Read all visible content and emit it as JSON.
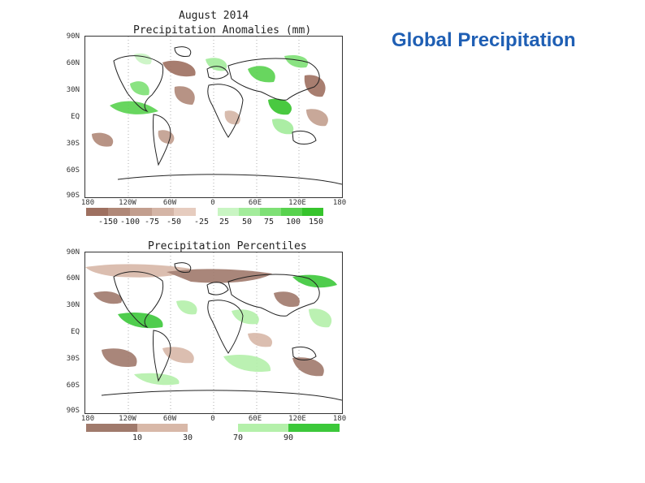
{
  "slide": {
    "title": "Global Precipitation"
  },
  "map1": {
    "title_line1": "August 2014",
    "title_line2": "Precipitation Anomalies (mm)",
    "lat_labels": [
      "90N",
      "60N",
      "30N",
      "EQ",
      "30S",
      "60S",
      "90S"
    ],
    "lon_labels": [
      "180",
      "120W",
      "60W",
      "0",
      "60E",
      "120E",
      "180"
    ],
    "legend_colors": [
      "#9e7060",
      "#b08878",
      "#c29e8e",
      "#d4b5a6",
      "#e6ccbf",
      "#ffffff",
      "#c9f5c3",
      "#a3ec9b",
      "#7ee075",
      "#58d24e",
      "#36c42c"
    ],
    "legend_labels": [
      "-150",
      "-100",
      "-75",
      "-50",
      "-25",
      "25",
      "50",
      "75",
      "100",
      "150"
    ]
  },
  "map2": {
    "title": "Precipitation Percentiles",
    "lat_labels": [
      "90N",
      "60N",
      "30N",
      "EQ",
      "30S",
      "60S",
      "90S"
    ],
    "lon_labels": [
      "180",
      "120W",
      "60W",
      "0",
      "60E",
      "120E",
      "180"
    ],
    "legend_colors": [
      "#a07a6c",
      "#d8b8a8",
      "#ffffff",
      "#b4f0aa",
      "#3cc83a"
    ],
    "legend_labels": [
      "10",
      "30",
      "70",
      "90"
    ]
  }
}
